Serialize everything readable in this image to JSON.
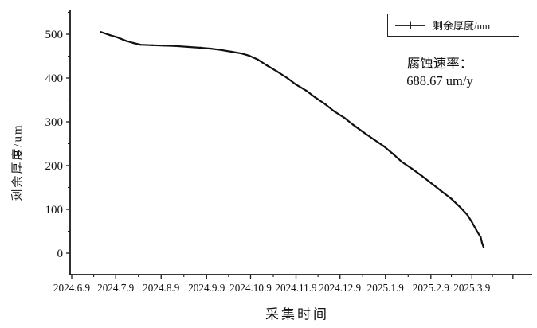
{
  "chart_data": {
    "type": "line",
    "title": "",
    "xlabel": "采集时间",
    "ylabel": "剩余厚度/um",
    "grid": false,
    "legend_position": "top-right-inside",
    "legend": {
      "label": "剩余厚度/um"
    },
    "annotation": {
      "line1": "腐蚀速率：",
      "line2": "688.67 um/y"
    },
    "line_color": "#111111",
    "axis_color": "#1a1a1a",
    "y_tick_labels": [
      "0",
      "100",
      "200",
      "300",
      "400",
      "500"
    ],
    "x_tick_labels": [
      "2024.6.9",
      "2024.7.9",
      "2024.8.9",
      "2024.9.9",
      "2024.10.9",
      "2024.11.9",
      "2024.12.9",
      "2025.1.9",
      "2025.2.9",
      "2025.3.9"
    ],
    "ylim": [
      0,
      550
    ],
    "xlim": [
      "2024.6.8",
      "2025.4.20"
    ],
    "series": [
      {
        "name": "剩余厚度/um",
        "points": [
          {
            "date": "2024.6.29",
            "value": 505
          },
          {
            "date": "2024.7.5",
            "value": 498
          },
          {
            "date": "2024.7.10",
            "value": 493
          },
          {
            "date": "2024.7.16",
            "value": 485
          },
          {
            "date": "2024.7.21",
            "value": 480
          },
          {
            "date": "2024.7.26",
            "value": 476
          },
          {
            "date": "2024.8.3",
            "value": 475
          },
          {
            "date": "2024.8.11",
            "value": 474
          },
          {
            "date": "2024.8.19",
            "value": 473
          },
          {
            "date": "2024.8.27",
            "value": 471
          },
          {
            "date": "2024.9.5",
            "value": 469
          },
          {
            "date": "2024.9.12",
            "value": 467
          },
          {
            "date": "2024.9.19",
            "value": 464
          },
          {
            "date": "2024.9.26",
            "value": 460
          },
          {
            "date": "2024.10.3",
            "value": 456
          },
          {
            "date": "2024.10.8",
            "value": 451
          },
          {
            "date": "2024.10.14",
            "value": 442
          },
          {
            "date": "2024.10.20",
            "value": 429
          },
          {
            "date": "2024.10.27",
            "value": 415
          },
          {
            "date": "2024.11.3",
            "value": 400
          },
          {
            "date": "2024.11.9",
            "value": 385
          },
          {
            "date": "2024.11.16",
            "value": 371
          },
          {
            "date": "2024.11.22",
            "value": 356
          },
          {
            "date": "2024.11.29",
            "value": 340
          },
          {
            "date": "2024.12.5",
            "value": 324
          },
          {
            "date": "2024.12.12",
            "value": 309
          },
          {
            "date": "2024.12.18",
            "value": 293
          },
          {
            "date": "2024.12.25",
            "value": 276
          },
          {
            "date": "2025.1.1",
            "value": 260
          },
          {
            "date": "2025.1.8",
            "value": 244
          },
          {
            "date": "2025.1.14",
            "value": 227
          },
          {
            "date": "2025.1.20",
            "value": 209
          },
          {
            "date": "2025.1.27",
            "value": 193
          },
          {
            "date": "2025.2.3",
            "value": 176
          },
          {
            "date": "2025.2.10",
            "value": 158
          },
          {
            "date": "2025.2.16",
            "value": 142
          },
          {
            "date": "2025.2.23",
            "value": 124
          },
          {
            "date": "2025.3.1",
            "value": 105
          },
          {
            "date": "2025.3.6",
            "value": 87
          },
          {
            "date": "2025.3.9",
            "value": 71
          },
          {
            "date": "2025.3.12",
            "value": 53
          },
          {
            "date": "2025.3.15",
            "value": 36
          },
          {
            "date": "2025.3.16",
            "value": 22
          },
          {
            "date": "2025.3.17",
            "value": 14
          }
        ]
      }
    ]
  }
}
